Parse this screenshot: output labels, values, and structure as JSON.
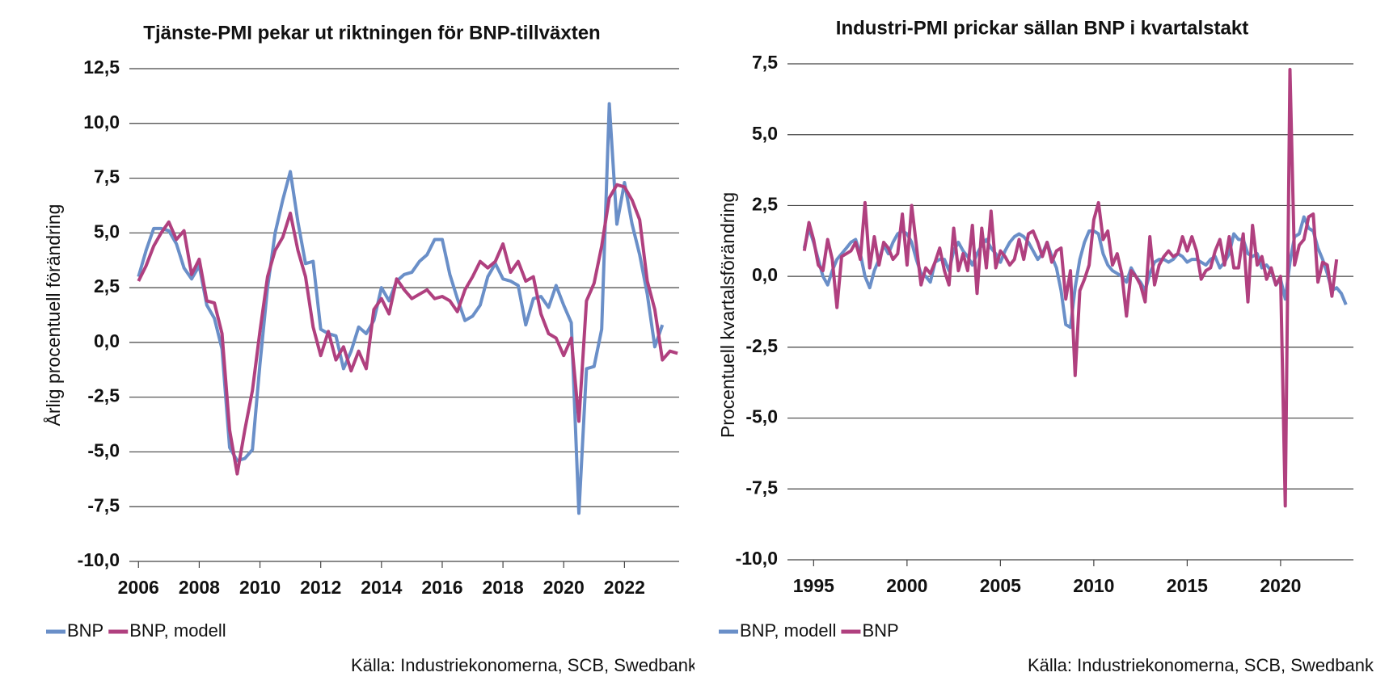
{
  "chart_data": [
    {
      "type": "line",
      "title": "Tjänste-PMI pekar ut riktningen för BNP-tillväxten",
      "y_label": "Årlig procentuell förändring",
      "source": "Källa: Industriekonomerna, SCB, Swedbank",
      "xlim": [
        2005.7,
        2023.8
      ],
      "xticks": [
        2006,
        2008,
        2010,
        2012,
        2014,
        2016,
        2018,
        2020,
        2022
      ],
      "ylim": [
        -10,
        12.5
      ],
      "yticks": [
        {
          "value": -10,
          "label": "-10,0"
        },
        {
          "value": -7.5,
          "label": "-7,5"
        },
        {
          "value": -5,
          "label": "-5,0"
        },
        {
          "value": -2.5,
          "label": "-2,5"
        },
        {
          "value": 0,
          "label": "0,0"
        },
        {
          "value": 2.5,
          "label": "2,5"
        },
        {
          "value": 5,
          "label": "5,0"
        },
        {
          "value": 7.5,
          "label": "7,5"
        },
        {
          "value": 10,
          "label": "10,0"
        },
        {
          "value": 12.5,
          "label": "12,5"
        }
      ],
      "grid": true,
      "legend": "bottom-left",
      "x": [
        2006,
        2006.25,
        2006.5,
        2006.75,
        2007,
        2007.25,
        2007.5,
        2007.75,
        2008,
        2008.25,
        2008.5,
        2008.75,
        2009,
        2009.25,
        2009.5,
        2009.75,
        2010,
        2010.25,
        2010.5,
        2010.75,
        2011,
        2011.25,
        2011.5,
        2011.75,
        2012,
        2012.25,
        2012.5,
        2012.75,
        2013,
        2013.25,
        2013.5,
        2013.75,
        2014,
        2014.25,
        2014.5,
        2014.75,
        2015,
        2015.25,
        2015.5,
        2015.75,
        2016,
        2016.25,
        2016.5,
        2016.75,
        2017,
        2017.25,
        2017.5,
        2017.75,
        2018,
        2018.25,
        2018.5,
        2018.75,
        2019,
        2019.25,
        2019.5,
        2019.75,
        2020,
        2020.25,
        2020.5,
        2020.75,
        2021,
        2021.25,
        2021.5,
        2021.75,
        2022,
        2022.25,
        2022.5,
        2022.75,
        2023,
        2023.25,
        2023.5,
        2023.75
      ],
      "series": [
        {
          "name": "BNP",
          "color": "#6a8fc8",
          "values": [
            3.0,
            4.2,
            5.2,
            5.2,
            5.1,
            4.5,
            3.4,
            2.9,
            3.5,
            1.7,
            1.1,
            -0.3,
            -4.8,
            -5.4,
            -5.3,
            -4.9,
            -1.0,
            2.5,
            5.0,
            6.5,
            7.8,
            5.5,
            3.6,
            3.7,
            0.6,
            0.4,
            0.3,
            -1.2,
            -0.4,
            0.7,
            0.4,
            1.0,
            2.5,
            1.9,
            2.8,
            3.1,
            3.2,
            3.7,
            4.0,
            4.7,
            4.7,
            3.1,
            2.0,
            1.0,
            1.2,
            1.7,
            3.0,
            3.6,
            2.9,
            2.8,
            2.6,
            0.8,
            2.0,
            2.1,
            1.6,
            2.6,
            1.7,
            0.9,
            -7.8,
            -1.2,
            -1.1,
            0.6,
            10.9,
            5.4,
            7.3,
            5.4,
            4.0,
            2.2,
            -0.2,
            0.8,
            null,
            null
          ]
        },
        {
          "name": "BNP, modell",
          "color": "#b0407f",
          "values": [
            2.8,
            3.5,
            4.4,
            5.0,
            5.5,
            4.7,
            5.1,
            3.1,
            3.8,
            1.9,
            1.8,
            0.4,
            -4.0,
            -6.0,
            -4.0,
            -2.2,
            0.5,
            3.0,
            4.2,
            4.8,
            5.9,
            4.2,
            3.0,
            0.7,
            -0.6,
            0.5,
            -0.8,
            -0.2,
            -1.3,
            -0.4,
            -1.2,
            1.5,
            2.0,
            1.3,
            2.9,
            2.4,
            2.0,
            2.2,
            2.4,
            2.0,
            2.1,
            1.9,
            1.4,
            2.4,
            3.0,
            3.7,
            3.4,
            3.7,
            4.5,
            3.2,
            3.7,
            2.8,
            3.0,
            1.3,
            0.4,
            0.2,
            -0.6,
            0.2,
            -3.6,
            1.9,
            2.7,
            4.4,
            6.6,
            7.2,
            7.1,
            6.5,
            5.6,
            2.8,
            1.5,
            -0.8,
            -0.4,
            -0.5
          ]
        }
      ]
    },
    {
      "type": "line",
      "title": "Industri-PMI prickar sällan BNP i kvartalstakt",
      "y_label": "Procentuell kvartalsförändring",
      "source": "Källa: Industriekonomerna, SCB, Swedbank",
      "xlim": [
        1993.6,
        2023.9
      ],
      "xticks": [
        1995,
        2000,
        2005,
        2010,
        2015,
        2020
      ],
      "ylim": [
        -10,
        7.5
      ],
      "yticks": [
        {
          "value": -10,
          "label": "-10,0"
        },
        {
          "value": -7.5,
          "label": "-7,5"
        },
        {
          "value": -5,
          "label": "-5,0"
        },
        {
          "value": -2.5,
          "label": "-2,5"
        },
        {
          "value": 0,
          "label": "0,0"
        },
        {
          "value": 2.5,
          "label": "2,5"
        },
        {
          "value": 5,
          "label": "5,0"
        },
        {
          "value": 7.5,
          "label": "7,5"
        }
      ],
      "grid": true,
      "legend": "bottom-left",
      "x": [
        1994.5,
        1994.75,
        1995,
        1995.25,
        1995.5,
        1995.75,
        1996,
        1996.25,
        1996.5,
        1996.75,
        1997,
        1997.25,
        1997.5,
        1997.75,
        1998,
        1998.25,
        1998.5,
        1998.75,
        1999,
        1999.25,
        1999.5,
        1999.75,
        2000,
        2000.25,
        2000.5,
        2000.75,
        2001,
        2001.25,
        2001.5,
        2001.75,
        2002,
        2002.25,
        2002.5,
        2002.75,
        2003,
        2003.25,
        2003.5,
        2003.75,
        2004,
        2004.25,
        2004.5,
        2004.75,
        2005,
        2005.25,
        2005.5,
        2005.75,
        2006,
        2006.25,
        2006.5,
        2006.75,
        2007,
        2007.25,
        2007.5,
        2007.75,
        2008,
        2008.25,
        2008.5,
        2008.75,
        2009,
        2009.25,
        2009.5,
        2009.75,
        2010,
        2010.25,
        2010.5,
        2010.75,
        2011,
        2011.25,
        2011.5,
        2011.75,
        2012,
        2012.25,
        2012.5,
        2012.75,
        2013,
        2013.25,
        2013.5,
        2013.75,
        2014,
        2014.25,
        2014.5,
        2014.75,
        2015,
        2015.25,
        2015.5,
        2015.75,
        2016,
        2016.25,
        2016.5,
        2016.75,
        2017,
        2017.25,
        2017.5,
        2017.75,
        2018,
        2018.25,
        2018.5,
        2018.75,
        2019,
        2019.25,
        2019.5,
        2019.75,
        2020,
        2020.25,
        2020.5,
        2020.75,
        2021,
        2021.25,
        2021.5,
        2021.75,
        2022,
        2022.25,
        2022.5,
        2022.75,
        2023,
        2023.25,
        2023.5
      ],
      "series": [
        {
          "name": "BNP, modell",
          "color": "#6a8fc8",
          "values": [
            1.0,
            1.7,
            1.2,
            0.6,
            0.0,
            -0.3,
            0.2,
            0.6,
            0.8,
            1.0,
            1.2,
            1.3,
            0.8,
            0.0,
            -0.4,
            0.2,
            0.6,
            1.1,
            0.8,
            1.2,
            1.5,
            1.6,
            1.5,
            1.2,
            0.6,
            0.1,
            0.0,
            -0.2,
            0.5,
            0.6,
            0.6,
            0.2,
            0.9,
            1.2,
            0.9,
            0.7,
            0.4,
            0.8,
            1.1,
            1.3,
            1.0,
            0.8,
            0.5,
            0.9,
            1.2,
            1.4,
            1.5,
            1.4,
            1.2,
            0.9,
            0.6,
            0.8,
            1.2,
            0.7,
            0.3,
            -0.5,
            -1.7,
            -1.8,
            -0.4,
            0.6,
            1.2,
            1.6,
            1.6,
            1.5,
            0.8,
            0.4,
            0.2,
            0.1,
            0.0,
            -0.2,
            0.3,
            0.0,
            -0.2,
            -0.5,
            0.1,
            0.5,
            0.6,
            0.6,
            0.5,
            0.6,
            0.8,
            0.7,
            0.5,
            0.6,
            0.6,
            0.5,
            0.4,
            0.6,
            0.7,
            0.3,
            0.5,
            0.8,
            1.5,
            1.3,
            1.3,
            0.8,
            0.7,
            0.8,
            0.3,
            0.4,
            0.2,
            -0.3,
            -0.1,
            -0.8,
            0.5,
            1.4,
            1.5,
            2.1,
            1.7,
            1.6,
            1.0,
            0.6,
            0.1,
            -0.5,
            -0.4,
            -0.6,
            -1.0
          ]
        },
        {
          "name": "BNP",
          "color": "#b0407f",
          "values": [
            0.9,
            1.9,
            1.3,
            0.4,
            0.2,
            1.3,
            0.6,
            -1.1,
            0.7,
            0.8,
            0.9,
            1.2,
            0.6,
            2.6,
            0.3,
            1.4,
            0.4,
            1.2,
            1.0,
            0.6,
            0.8,
            2.2,
            0.4,
            2.5,
            1.1,
            -0.3,
            0.3,
            0.1,
            0.5,
            1.0,
            0.2,
            -0.3,
            1.7,
            0.2,
            0.8,
            0.2,
            1.8,
            -0.6,
            1.7,
            0.3,
            2.3,
            0.3,
            0.9,
            0.7,
            0.4,
            0.6,
            1.3,
            0.6,
            1.5,
            1.6,
            1.2,
            0.7,
            1.2,
            0.5,
            0.9,
            1.0,
            -0.8,
            0.2,
            -3.5,
            -0.5,
            -0.1,
            0.4,
            2.0,
            2.6,
            1.3,
            1.6,
            0.4,
            0.8,
            0.1,
            -1.4,
            0.2,
            0.0,
            -0.3,
            -0.9,
            1.4,
            -0.3,
            0.4,
            0.7,
            0.9,
            0.7,
            0.8,
            1.4,
            0.9,
            1.4,
            0.9,
            -0.1,
            0.2,
            0.3,
            0.9,
            1.3,
            0.4,
            1.4,
            0.3,
            0.3,
            1.5,
            -0.9,
            1.8,
            0.4,
            0.7,
            -0.1,
            0.3,
            -0.3,
            0.0,
            -8.1,
            7.3,
            0.4,
            1.1,
            1.3,
            2.1,
            2.2,
            -0.2,
            0.5,
            0.4,
            -0.7,
            0.6,
            null,
            null
          ]
        }
      ]
    }
  ]
}
